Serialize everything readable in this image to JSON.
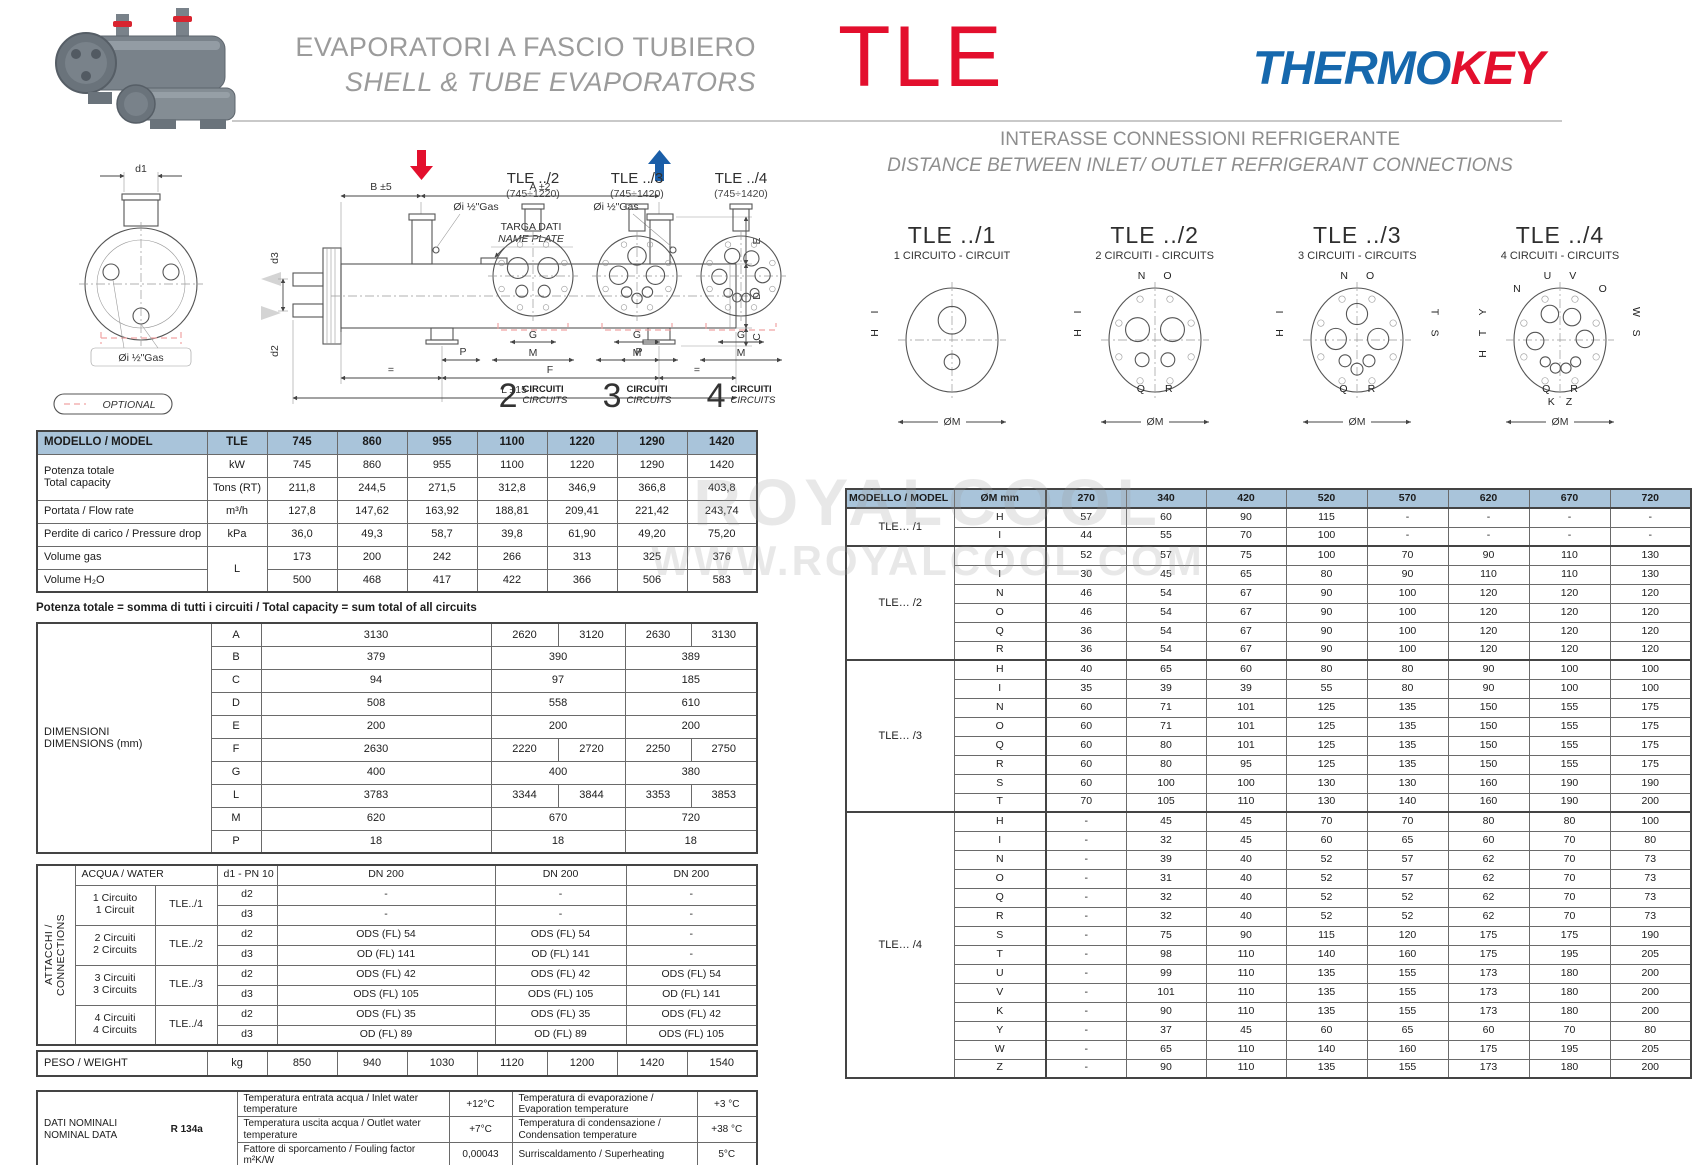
{
  "header": {
    "title_it": "EVAPORATORI A FASCIO TUBIERO",
    "title_en": "SHELL & TUBE EVAPORATORS",
    "series": "TLE",
    "brand_thermo": "THERMO",
    "brand_key": "KEY",
    "subtitle_it": "INTERASSE CONNESSIONI REFRIGERANTE",
    "subtitle_en": "DISTANCE BETWEEN INLET/ OUTLET REFRIGERANT CONNECTIONS"
  },
  "colors": {
    "accent_red": "#e30f2d",
    "brand_blue": "#1668ad",
    "table_header_blue": "#a9c4da"
  },
  "watermark": {
    "line1": "ROYALCOOL",
    "line2": "WWW.ROYALCOOL.COM"
  },
  "drawing": {
    "d1": "d1",
    "gas": "Øi ½\"Gas",
    "optional": "OPTIONAL",
    "b": "B ±5",
    "a": "A ±2",
    "targa": "TARGA DATI",
    "plate": "NAME PLATE",
    "e": "E",
    "d": "D",
    "c": "C",
    "d3": "d3",
    "d2": "d2",
    "p": "P",
    "f": "F",
    "eq": "=",
    "l": "L ±15"
  },
  "mid_diagrams": [
    {
      "title": "TLE ../2",
      "range": "(745÷1220)",
      "type": 2,
      "g": "G",
      "m": "M",
      "num": "2",
      "circ_it": "CIRCUITI",
      "circ_en": "CIRCUITS"
    },
    {
      "title": "TLE ../3",
      "range": "(745÷1420)",
      "type": 3,
      "g": "G",
      "m": "M",
      "num": "3",
      "circ_it": "CIRCUITI",
      "circ_en": "CIRCUITS"
    },
    {
      "title": "TLE ../4",
      "range": "(745÷1420)",
      "type": 4,
      "g": "G",
      "m": "M",
      "num": "4",
      "circ_it": "CIRCUITI",
      "circ_en": "CIRCUITS"
    }
  ],
  "right_diagrams": [
    {
      "title": "TLE ../1",
      "subtitle": "1 CIRCUITO - CIRCUIT",
      "type": 1,
      "top": [],
      "left": [
        "I",
        "H"
      ],
      "right": [],
      "bottom": [],
      "om": "ØM"
    },
    {
      "title": "TLE ../2",
      "subtitle": "2 CIRCUITI - CIRCUITS",
      "type": 2,
      "top": [
        "N",
        "O"
      ],
      "left": [
        "I",
        "H"
      ],
      "right": [],
      "bottom": [
        "Q",
        "R"
      ],
      "om": "ØM"
    },
    {
      "title": "TLE ../3",
      "subtitle": "3 CIRCUITI - CIRCUITS",
      "type": 3,
      "top": [
        "N",
        "O"
      ],
      "left": [
        "I",
        "H"
      ],
      "right": [
        "T",
        "S"
      ],
      "bottom": [
        "Q",
        "R"
      ],
      "om": "ØM"
    },
    {
      "title": "TLE ../4",
      "subtitle": "4 CIRCUITI - CIRCUITS",
      "type": 4,
      "top": [
        "U",
        "V"
      ],
      "top2": [
        "N",
        "O"
      ],
      "left": [
        "Y",
        "T",
        "H"
      ],
      "right": [
        "W",
        "S"
      ],
      "bottom": [
        "Q",
        "R"
      ],
      "bottom2": [
        "K",
        "Z"
      ],
      "om": "ØM"
    }
  ],
  "capacity_table": {
    "colw": [
      "170px",
      "60px",
      "70px",
      "70px",
      "70px",
      "70px",
      "70px",
      "70px",
      "70px"
    ],
    "rows": [
      {
        "cls": "head",
        "cells": [
          {
            "t": "MODELLO / MODEL",
            "cls": "lft"
          },
          "TLE",
          "745",
          "860",
          "955",
          "1100",
          "1220",
          "1290",
          "1420"
        ]
      },
      {
        "cells": [
          {
            "t": "Potenza totale\nTotal capacity",
            "cls": "lft",
            "rs": 2
          },
          "kW",
          "745",
          "860",
          "955",
          "1100",
          "1220",
          "1290",
          "1420"
        ]
      },
      {
        "cells": [
          "Tons (RT)",
          "211,8",
          "244,5",
          "271,5",
          "312,8",
          "346,9",
          "366,8",
          "403,8"
        ]
      },
      {
        "cells": [
          {
            "t": "Portata  /  Flow rate",
            "cls": "lft"
          },
          "m³/h",
          "127,8",
          "147,62",
          "163,92",
          "188,81",
          "209,41",
          "221,42",
          "243,74"
        ]
      },
      {
        "cells": [
          {
            "t": "Perdite di  carico  /  Pressure drop",
            "cls": "lft"
          },
          "kPa",
          "36,0",
          "49,3",
          "58,7",
          "39,8",
          "61,90",
          "49,20",
          "75,20"
        ]
      },
      {
        "cells": [
          {
            "t": "Volume gas",
            "cls": "lft"
          },
          {
            "t": "L",
            "rs": 2
          },
          "173",
          "200",
          "242",
          "266",
          "313",
          "325",
          "376"
        ]
      },
      {
        "cells": [
          {
            "t": "Volume H₂O",
            "cls": "lft"
          },
          "500",
          "468",
          "417",
          "422",
          "366",
          "506",
          "583"
        ]
      }
    ]
  },
  "note": "Potenza totale = somma di tutti i circuiti / Total capacity = sum total of all circuits",
  "dimensions_table": {
    "colw": [
      "174px",
      "50px",
      "115px",
      "115px",
      "67px",
      "67px",
      "66px",
      "66px"
    ],
    "rows": [
      {
        "cells": [
          {
            "t": "DIMENSIONI\nDIMENSIONS (mm)",
            "cls": "lft",
            "rs": 10
          },
          "A",
          {
            "t": "3130",
            "cs": 2
          },
          "2620",
          "3120",
          "2630",
          "3130"
        ]
      },
      {
        "cells": [
          "B",
          {
            "t": "379",
            "cs": 2
          },
          {
            "t": "390",
            "cs": 2
          },
          {
            "t": "389",
            "cs": 2
          }
        ]
      },
      {
        "cells": [
          "C",
          {
            "t": "94",
            "cs": 2
          },
          {
            "t": "97",
            "cs": 2
          },
          {
            "t": "185",
            "cs": 2
          }
        ]
      },
      {
        "cells": [
          "D",
          {
            "t": "508",
            "cs": 2
          },
          {
            "t": "558",
            "cs": 2
          },
          {
            "t": "610",
            "cs": 2
          }
        ]
      },
      {
        "cells": [
          "E",
          {
            "t": "200",
            "cs": 2
          },
          {
            "t": "200",
            "cs": 2
          },
          {
            "t": "200",
            "cs": 2
          }
        ]
      },
      {
        "cells": [
          "F",
          {
            "t": "2630",
            "cs": 2
          },
          "2220",
          "2720",
          "2250",
          "2750"
        ]
      },
      {
        "cells": [
          "G",
          {
            "t": "400",
            "cs": 2
          },
          {
            "t": "400",
            "cs": 2
          },
          {
            "t": "380",
            "cs": 2
          }
        ]
      },
      {
        "cells": [
          "L",
          {
            "t": "3783",
            "cs": 2
          },
          "3344",
          "3844",
          "3353",
          "3853"
        ]
      },
      {
        "cells": [
          "M",
          {
            "t": "620",
            "cs": 2
          },
          {
            "t": "670",
            "cs": 2
          },
          {
            "t": "720",
            "cs": 2
          }
        ]
      },
      {
        "cells": [
          "P",
          {
            "t": "18",
            "cs": 2
          },
          {
            "t": "18",
            "cs": 2
          },
          {
            "t": "18",
            "cs": 2
          }
        ]
      }
    ]
  },
  "connections_table": {
    "colw": [
      "38px",
      "80px",
      "62px",
      "60px",
      "218px",
      "131px",
      "131px"
    ],
    "rows": [
      {
        "cells": [
          {
            "t": "ATTACCHI /\nCONNECTIONS",
            "cls": "vert",
            "rs": 9
          },
          {
            "t": "ACQUA / WATER",
            "cs": 2,
            "cls": "lft"
          },
          {
            "t": "d1 - PN 10",
            "cls": "lft"
          },
          "DN 200",
          "DN 200",
          "DN 200"
        ]
      },
      {
        "cells": [
          {
            "t": "1 Circuito\n1 Circuit",
            "rs": 2
          },
          {
            "t": "TLE../1",
            "rs": 2
          },
          "d2",
          "-",
          "-",
          "-"
        ]
      },
      {
        "cells": [
          "d3",
          "-",
          "-",
          "-"
        ]
      },
      {
        "cells": [
          {
            "t": "2 Circuiti\n2 Circuits",
            "rs": 2
          },
          {
            "t": "TLE../2",
            "rs": 2
          },
          "d2",
          "ODS (FL) 54",
          "ODS (FL) 54",
          "-"
        ]
      },
      {
        "cells": [
          "d3",
          "OD (FL) 141",
          "OD (FL) 141",
          "-"
        ]
      },
      {
        "cells": [
          {
            "t": "3 Circuiti\n3 Circuits",
            "rs": 2
          },
          {
            "t": "TLE../3",
            "rs": 2
          },
          "d2",
          "ODS (FL) 42",
          "ODS (FL) 42",
          "ODS (FL) 54"
        ]
      },
      {
        "cells": [
          "d3",
          "ODS (FL) 105",
          "ODS (FL) 105",
          "OD (FL) 141"
        ]
      },
      {
        "cells": [
          {
            "t": "4 Circuiti\n4 Circuits",
            "rs": 2
          },
          {
            "t": "TLE../4",
            "rs": 2
          },
          "d2",
          "ODS (FL) 35",
          "ODS (FL) 35",
          "ODS (FL) 42"
        ]
      },
      {
        "cells": [
          "d3",
          "OD (FL) 89",
          "OD (FL) 89",
          "ODS (FL) 105"
        ]
      }
    ]
  },
  "weight_table": {
    "colw": [
      "170px",
      "60px",
      "70px",
      "70px",
      "70px",
      "70px",
      "70px",
      "70px",
      "70px"
    ],
    "rows": [
      {
        "cells": [
          {
            "t": "PESO / WEIGHT",
            "cls": "lft"
          },
          "kg",
          "850",
          "940",
          "1030",
          "1120",
          "1200",
          "1420",
          "1540"
        ]
      }
    ]
  },
  "nominal_table": {
    "colw": [
      "100px",
      "100px",
      "212px",
      "63px",
      "185px",
      "60px"
    ],
    "rows": [
      {
        "cells": [
          {
            "t": "DATI NOMINALI\nNOMINAL DATA",
            "cls": "lft nomlbl",
            "rs": 3
          },
          {
            "t": "R 134a",
            "cls": "r134",
            "rs": 3
          },
          {
            "t": "Temperatura entrata acqua / Inlet water temperature",
            "cls": "lft"
          },
          "+12°C",
          {
            "t": "Temperatura di evaporazione / Evaporation temperature",
            "cls": "lft"
          },
          "+3 °C"
        ]
      },
      {
        "cells": [
          {
            "t": "Temperatura uscita acqua / Outlet water temperature",
            "cls": "lft"
          },
          "+7°C",
          {
            "t": "Temperatura di condensazione / Condensation temperature",
            "cls": "lft"
          },
          "+38 °C"
        ]
      },
      {
        "cells": [
          {
            "t": "Fattore di sporcamento / Fouling factor        m²K/W",
            "cls": "lft"
          },
          "0,00043",
          {
            "t": "Surriscaldamento / Superheating",
            "cls": "lft"
          },
          "5°C"
        ]
      }
    ]
  },
  "distance_table": {
    "colw": [
      "108px",
      "92px",
      "80px",
      "80px",
      "80px",
      "81px",
      "81px",
      "81px",
      "81px",
      "81px"
    ],
    "header": [
      "MODELLO / MODEL",
      "ØM mm",
      "270",
      "340",
      "420",
      "520",
      "570",
      "620",
      "670",
      "720"
    ],
    "groups": [
      {
        "model": "TLE… /1",
        "rows": [
          [
            "H",
            "57",
            "60",
            "90",
            "115",
            "-",
            "-",
            "-",
            "-"
          ],
          [
            "I",
            "44",
            "55",
            "70",
            "100",
            "-",
            "-",
            "-",
            "-"
          ]
        ]
      },
      {
        "model": "TLE… /2",
        "rows": [
          [
            "H",
            "52",
            "57",
            "75",
            "100",
            "70",
            "90",
            "110",
            "130"
          ],
          [
            "I",
            "30",
            "45",
            "65",
            "80",
            "90",
            "110",
            "110",
            "130"
          ],
          [
            "N",
            "46",
            "54",
            "67",
            "90",
            "100",
            "120",
            "120",
            "120"
          ],
          [
            "O",
            "46",
            "54",
            "67",
            "90",
            "100",
            "120",
            "120",
            "120"
          ],
          [
            "Q",
            "36",
            "54",
            "67",
            "90",
            "100",
            "120",
            "120",
            "120"
          ],
          [
            "R",
            "36",
            "54",
            "67",
            "90",
            "100",
            "120",
            "120",
            "120"
          ]
        ]
      },
      {
        "model": "TLE… /3",
        "rows": [
          [
            "H",
            "40",
            "65",
            "60",
            "80",
            "80",
            "90",
            "100",
            "100"
          ],
          [
            "I",
            "35",
            "39",
            "39",
            "55",
            "80",
            "90",
            "100",
            "100"
          ],
          [
            "N",
            "60",
            "71",
            "101",
            "125",
            "135",
            "150",
            "155",
            "175"
          ],
          [
            "O",
            "60",
            "71",
            "101",
            "125",
            "135",
            "150",
            "155",
            "175"
          ],
          [
            "Q",
            "60",
            "80",
            "101",
            "125",
            "135",
            "150",
            "155",
            "175"
          ],
          [
            "R",
            "60",
            "80",
            "95",
            "125",
            "135",
            "150",
            "155",
            "175"
          ],
          [
            "S",
            "60",
            "100",
            "100",
            "130",
            "130",
            "160",
            "190",
            "190"
          ],
          [
            "T",
            "70",
            "105",
            "110",
            "130",
            "140",
            "160",
            "190",
            "200"
          ]
        ]
      },
      {
        "model": "TLE… /4",
        "rows": [
          [
            "H",
            "-",
            "45",
            "45",
            "70",
            "70",
            "80",
            "80",
            "100"
          ],
          [
            "I",
            "-",
            "32",
            "45",
            "60",
            "65",
            "60",
            "70",
            "80"
          ],
          [
            "N",
            "-",
            "39",
            "40",
            "52",
            "57",
            "62",
            "70",
            "73"
          ],
          [
            "O",
            "-",
            "31",
            "40",
            "52",
            "57",
            "62",
            "70",
            "73"
          ],
          [
            "Q",
            "-",
            "32",
            "40",
            "52",
            "52",
            "62",
            "70",
            "73"
          ],
          [
            "R",
            "-",
            "32",
            "40",
            "52",
            "52",
            "62",
            "70",
            "73"
          ],
          [
            "S",
            "-",
            "75",
            "90",
            "115",
            "120",
            "175",
            "175",
            "190"
          ],
          [
            "T",
            "-",
            "98",
            "110",
            "140",
            "160",
            "175",
            "195",
            "205"
          ],
          [
            "U",
            "-",
            "99",
            "110",
            "135",
            "155",
            "173",
            "180",
            "200"
          ],
          [
            "V",
            "-",
            "101",
            "110",
            "135",
            "155",
            "173",
            "180",
            "200"
          ],
          [
            "K",
            "-",
            "90",
            "110",
            "135",
            "155",
            "173",
            "180",
            "200"
          ],
          [
            "Y",
            "-",
            "37",
            "45",
            "60",
            "65",
            "60",
            "70",
            "80"
          ],
          [
            "W",
            "-",
            "65",
            "110",
            "140",
            "160",
            "175",
            "195",
            "205"
          ],
          [
            "Z",
            "-",
            "90",
            "110",
            "135",
            "155",
            "173",
            "180",
            "200"
          ]
        ]
      }
    ]
  }
}
